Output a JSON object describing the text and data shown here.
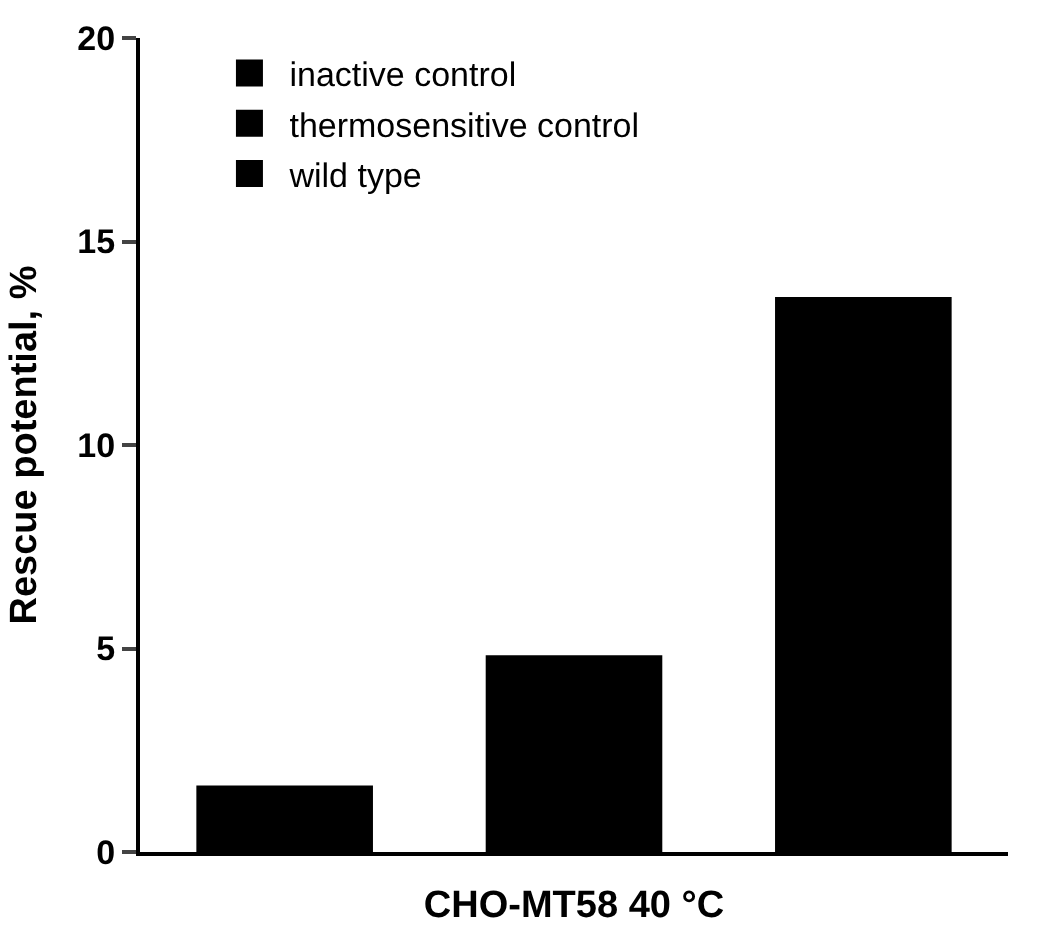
{
  "chart_data": {
    "type": "bar",
    "xlabel": "CHO-MT58 40 °C",
    "ylabel": "Rescue potential, %",
    "categories": [
      null,
      null,
      null
    ],
    "series": [
      {
        "name": "inactive control",
        "color": "#000000",
        "values": [
          1.6,
          null,
          null
        ]
      },
      {
        "name": "thermosensitive control",
        "color": "#000000",
        "values": [
          null,
          4.8,
          null
        ]
      },
      {
        "name": "wild type",
        "color": "#000000",
        "values": [
          null,
          null,
          13.6
        ]
      }
    ],
    "ylim": [
      0,
      20
    ],
    "yticks": [
      0,
      5,
      10,
      15,
      20
    ],
    "legend": "top left"
  }
}
